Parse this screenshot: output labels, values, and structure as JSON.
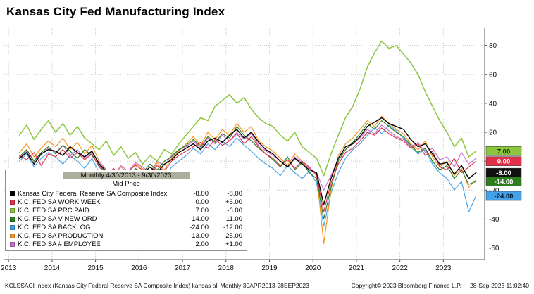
{
  "title": "Kansas City Fed Manufacturing Index",
  "legend": {
    "period_label": "Monthly 4/30/2013 - 9/30/2023",
    "price_label": "Mid Price"
  },
  "status_bar": {
    "left": "KCLSSACI Index (Kansas City Federal Reserve SA Composite Index) kansas all  Monthly 30APR2013-28SEP2023",
    "copyright": "Copyright© 2023 Bloomberg Finance L.P.",
    "timestamp": "28-Sep-2023 11:02:40"
  },
  "chart_data": {
    "type": "line",
    "title": "Kansas City Fed Manufacturing Index",
    "xlabel": "",
    "ylabel": "",
    "x_start": 2013.25,
    "x_step": 0.16667,
    "points_per_series": 64,
    "x_axis": {
      "ticks": [
        2013,
        2014,
        2015,
        2016,
        2017,
        2018,
        2019,
        2020,
        2021,
        2022,
        2023
      ]
    },
    "y_axis": {
      "ticks": [
        80,
        60,
        40,
        20,
        0,
        -20,
        -40,
        -60
      ],
      "range": [
        -68,
        92
      ],
      "side": "right",
      "grid": "dotted"
    },
    "series": [
      {
        "id": "composite",
        "label": "Kansas City Federal Reserve SA Composite Index",
        "color": "#000000",
        "last": "-8.00",
        "change": "-8.00",
        "z": 7,
        "width": 1.4,
        "values": [
          2,
          6,
          -2,
          5,
          8,
          7,
          4,
          10,
          6,
          3,
          7,
          -2,
          -7,
          -12,
          -8,
          -10,
          -6,
          -9,
          -4,
          -8,
          -2,
          1,
          6,
          9,
          12,
          8,
          14,
          16,
          13,
          18,
          22,
          16,
          20,
          13,
          8,
          5,
          0,
          -4,
          2,
          -2,
          -6,
          -8,
          -30,
          -12,
          2,
          10,
          12,
          17,
          24,
          27,
          30,
          26,
          24,
          22,
          15,
          10,
          12,
          5,
          -2,
          -1,
          -9,
          -3,
          -12,
          -8
        ]
      },
      {
        "id": "work-week",
        "label": "K.C. FED SA WORK WEEK",
        "color": "#e0314b",
        "last": "0.00",
        "change": "+6.00",
        "z": 5,
        "width": 1.15,
        "values": [
          4,
          1,
          6,
          -3,
          5,
          3,
          8,
          2,
          6,
          1,
          5,
          -4,
          -9,
          -5,
          -11,
          -7,
          -3,
          -6,
          -10,
          -3,
          -7,
          0,
          4,
          7,
          10,
          13,
          9,
          15,
          11,
          14,
          19,
          12,
          17,
          10,
          5,
          2,
          -3,
          1,
          -5,
          0,
          -4,
          -10,
          -35,
          -15,
          -2,
          6,
          9,
          14,
          20,
          18,
          23,
          19,
          16,
          14,
          9,
          12,
          4,
          7,
          -4,
          -6,
          2,
          -8,
          -4,
          0
        ]
      },
      {
        "id": "prc-paid",
        "label": "K.C. FED SA PRC PAID",
        "color": "#8cc63e",
        "last": "7.00",
        "change": "-6.00",
        "z": 6,
        "width": 1.5,
        "values": [
          18,
          25,
          15,
          22,
          28,
          20,
          26,
          18,
          24,
          16,
          12,
          8,
          14,
          4,
          10,
          2,
          6,
          -2,
          4,
          0,
          8,
          5,
          12,
          18,
          24,
          30,
          28,
          38,
          42,
          46,
          40,
          44,
          36,
          30,
          26,
          24,
          18,
          14,
          20,
          10,
          6,
          2,
          -10,
          5,
          18,
          30,
          38,
          50,
          65,
          75,
          83,
          78,
          80,
          74,
          68,
          60,
          48,
          38,
          28,
          20,
          10,
          16,
          3,
          7
        ]
      },
      {
        "id": "new-ord",
        "label": "K.C. FED SA V NEW ORD",
        "color": "#2e7d1f",
        "last": "-14.00",
        "change": "-11.00",
        "z": 4,
        "width": 1.15,
        "values": [
          3,
          8,
          0,
          6,
          10,
          5,
          11,
          7,
          2,
          8,
          4,
          -3,
          -8,
          -13,
          -6,
          -11,
          -5,
          -8,
          -2,
          -6,
          0,
          3,
          8,
          11,
          15,
          10,
          17,
          13,
          19,
          16,
          24,
          18,
          14,
          9,
          5,
          1,
          -4,
          3,
          -6,
          -1,
          -8,
          -12,
          -40,
          -18,
          0,
          8,
          13,
          19,
          26,
          22,
          28,
          24,
          20,
          17,
          11,
          6,
          9,
          0,
          -6,
          -3,
          -12,
          -6,
          -16,
          -14
        ]
      },
      {
        "id": "backlog",
        "label": "K.C. FED SA BACKLOG",
        "color": "#45a2e8",
        "last": "-24.00",
        "change": "-12.00",
        "z": 1,
        "width": 1.15,
        "values": [
          0,
          5,
          -4,
          2,
          6,
          3,
          -2,
          4,
          0,
          -5,
          2,
          -8,
          -14,
          -9,
          -16,
          -11,
          -15,
          -10,
          -16,
          -8,
          -12,
          -4,
          0,
          4,
          9,
          5,
          12,
          8,
          14,
          10,
          16,
          11,
          7,
          2,
          -2,
          -5,
          -10,
          -3,
          -8,
          -12,
          -7,
          -15,
          -45,
          -22,
          -8,
          2,
          8,
          12,
          18,
          23,
          19,
          25,
          21,
          16,
          10,
          5,
          8,
          -2,
          -8,
          -12,
          -20,
          -14,
          -35,
          -24
        ]
      },
      {
        "id": "production",
        "label": "K.C. FED SA PRODUCTION",
        "color": "#f7941d",
        "last": "-13.00",
        "change": "-25.00",
        "z": 2,
        "width": 1.15,
        "values": [
          6,
          12,
          3,
          9,
          14,
          10,
          16,
          8,
          13,
          5,
          11,
          0,
          -6,
          -10,
          -4,
          -8,
          -2,
          -5,
          -9,
          -1,
          -6,
          2,
          7,
          12,
          17,
          11,
          20,
          15,
          22,
          18,
          26,
          20,
          24,
          14,
          10,
          7,
          2,
          -3,
          5,
          0,
          -5,
          -9,
          -57,
          -20,
          4,
          12,
          16,
          22,
          28,
          24,
          31,
          26,
          22,
          19,
          12,
          8,
          14,
          3,
          -4,
          0,
          -10,
          -5,
          -18,
          -13
        ]
      },
      {
        "id": "employee",
        "label": "K.C. FED SA # EMPLOYEE",
        "color": "#c573cf",
        "last": "2.00",
        "change": "+1.00",
        "z": 3,
        "width": 1.15,
        "values": [
          2,
          7,
          0,
          5,
          9,
          6,
          11,
          4,
          8,
          2,
          6,
          -1,
          -6,
          -10,
          -3,
          -7,
          -1,
          -4,
          -8,
          0,
          -3,
          4,
          8,
          10,
          14,
          9,
          16,
          12,
          18,
          14,
          20,
          15,
          19,
          11,
          7,
          4,
          0,
          -4,
          3,
          -1,
          -5,
          -8,
          -20,
          -10,
          2,
          8,
          12,
          16,
          22,
          19,
          25,
          21,
          17,
          15,
          10,
          13,
          6,
          9,
          1,
          3,
          -4,
          6,
          -2,
          2
        ]
      }
    ],
    "last_value_badges": [
      {
        "label": "7.00",
        "value": 7,
        "bg": "#8cc63e",
        "fg": "#0a2a00"
      },
      {
        "label": "0.00",
        "value": 0,
        "bg": "#e0314b",
        "fg": "#ffffff"
      },
      {
        "label": "-8.00",
        "value": -8,
        "bg": "#101010",
        "fg": "#ffffff"
      },
      {
        "label": "-14.00",
        "value": -14,
        "bg": "#2e7d1f",
        "fg": "#ffffff"
      },
      {
        "label": "-24.00",
        "value": -24,
        "bg": "#45a2e8",
        "fg": "#00172e"
      }
    ]
  }
}
